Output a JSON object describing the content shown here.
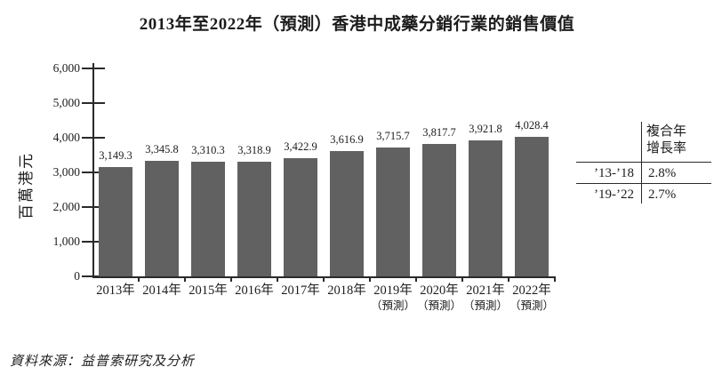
{
  "chart_data": {
    "type": "bar",
    "title": "2013年至2022年（預測）香港中成藥分銷行業的銷售價值",
    "ylabel": "百萬港元",
    "xlabel": "",
    "ylim": [
      0,
      6000
    ],
    "ytick_step": 1000,
    "ytick_labels": [
      "0",
      "1,000",
      "2,000",
      "3,000",
      "4,000",
      "5,000",
      "6,000"
    ],
    "grid": false,
    "legend_position": "none",
    "bar_color": "#616161",
    "categories": [
      "2013年",
      "2014年",
      "2015年",
      "2016年",
      "2017年",
      "2018年",
      "2019年",
      "2020年",
      "2021年",
      "2022年"
    ],
    "sublabels": [
      "",
      "",
      "",
      "",
      "",
      "",
      "（預測）",
      "（預測）",
      "（預測）",
      "（預測）"
    ],
    "values": [
      3149.3,
      3345.8,
      3310.3,
      3318.9,
      3422.9,
      3616.9,
      3715.7,
      3817.7,
      3921.8,
      4028.4
    ],
    "value_labels": [
      "3,149.3",
      "3,345.8",
      "3,310.3",
      "3,318.9",
      "3,422.9",
      "3,616.9",
      "3,715.7",
      "3,817.7",
      "3,921.8",
      "4,028.4"
    ]
  },
  "cagr_table": {
    "header_lines": [
      "複合年",
      "增長率"
    ],
    "rows": [
      {
        "period": "’13-’18",
        "value": "2.8%"
      },
      {
        "period": "’19-’22",
        "value": "2.7%"
      }
    ]
  },
  "source": {
    "text": "資料來源：益普索研究及分析"
  }
}
